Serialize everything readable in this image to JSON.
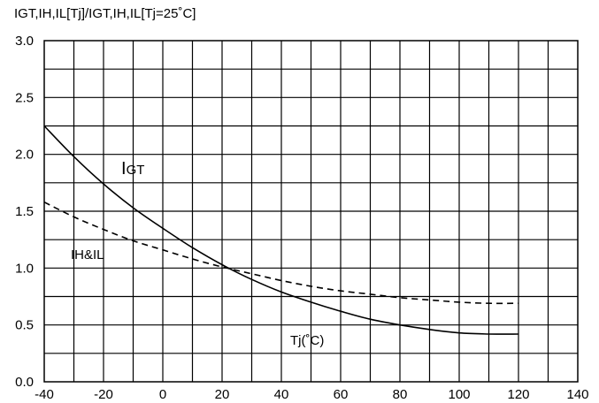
{
  "chart_data": {
    "type": "line",
    "title": "IGT,IH,IL[Tj]/IGT,IH,IL[Tj=25˚C]",
    "xlabel": "Tj(˚C)",
    "ylabel": "",
    "xlim": [
      -40,
      140
    ],
    "ylim": [
      0,
      3.0
    ],
    "x_ticks": [
      "-40",
      "-20",
      "0",
      "20",
      "40",
      "60",
      "80",
      "100",
      "120",
      "140"
    ],
    "y_ticks": [
      "0.0",
      "0.5",
      "1.0",
      "1.5",
      "2.0",
      "2.5",
      "3.0"
    ],
    "grid": true,
    "series": [
      {
        "name": "IGT",
        "style": "solid",
        "x": [
          -40,
          -30,
          -20,
          -10,
          0,
          10,
          20,
          30,
          40,
          50,
          60,
          70,
          80,
          90,
          100,
          110,
          120
        ],
        "y": [
          2.25,
          1.98,
          1.74,
          1.53,
          1.35,
          1.18,
          1.03,
          0.9,
          0.79,
          0.7,
          0.62,
          0.55,
          0.5,
          0.46,
          0.43,
          0.42,
          0.42
        ]
      },
      {
        "name": "IH&IL",
        "style": "dashed",
        "x": [
          -40,
          -30,
          -20,
          -10,
          0,
          10,
          20,
          30,
          40,
          50,
          60,
          70,
          80,
          90,
          100,
          110,
          120
        ],
        "y": [
          1.58,
          1.45,
          1.34,
          1.24,
          1.16,
          1.08,
          1.01,
          0.95,
          0.89,
          0.84,
          0.8,
          0.77,
          0.74,
          0.72,
          0.7,
          0.69,
          0.69
        ]
      }
    ],
    "annotations": {
      "igt_main": "I",
      "igt_sub": "GT",
      "ihil": "IH&IL",
      "tj": "Tj(˚C)"
    }
  }
}
